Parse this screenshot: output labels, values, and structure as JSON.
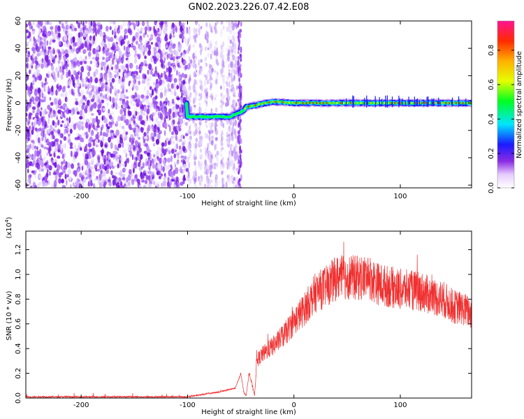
{
  "title": "GN02.2023.226.07.42.E08",
  "chart_data": [
    {
      "type": "heatmap",
      "xlabel": "Height of straight line (km)",
      "ylabel": "Frequency (Hz)",
      "xlim": [
        -252,
        167
      ],
      "ylim": [
        -62,
        60
      ],
      "xticks": [
        -200,
        -100,
        0,
        100
      ],
      "yticks": [
        60,
        40,
        20,
        0,
        -20,
        -40,
        -60
      ],
      "colorbar": {
        "label": "Normalized spectral amplitude",
        "range": [
          0.0,
          0.97
        ],
        "ticks": [
          "0.0",
          "0.2",
          "0.4",
          "0.6",
          "0.8"
        ]
      },
      "ridge": [
        {
          "x": -100,
          "freq": -10
        },
        {
          "x": -60,
          "freq": -10
        },
        {
          "x": -48,
          "freq": -6
        },
        {
          "x": -45,
          "freq": -3
        },
        {
          "x": -20,
          "freq": 1
        },
        {
          "x": 0,
          "freq": 0
        },
        {
          "x": 50,
          "freq": 0
        },
        {
          "x": 100,
          "freq": 0
        },
        {
          "x": 167,
          "freq": 0
        }
      ]
    },
    {
      "type": "line",
      "xlabel": "Height of straight line (km)",
      "ylabel": "SNR (10 * v/v)",
      "y_multiplier": "(x10^4)",
      "xlim": [
        -252,
        167
      ],
      "ylim": [
        0,
        1.35
      ],
      "xticks": [
        -200,
        -100,
        0,
        100
      ],
      "yticks": [
        "1.2",
        "1.0",
        "0.8",
        "0.6",
        "0.4",
        "0.2",
        "0.0"
      ],
      "series": [
        {
          "color": "#f03030",
          "x": [
            -252,
            -200,
            -150,
            -120,
            -100,
            -85,
            -70,
            -55,
            -50,
            -47,
            -45,
            -42,
            -37,
            -35,
            -30,
            -20,
            -10,
            0,
            10,
            20,
            30,
            40,
            50,
            60,
            70,
            80,
            90,
            100,
            110,
            120,
            130,
            140,
            150,
            160,
            167
          ],
          "y": [
            0.01,
            0.01,
            0.01,
            0.01,
            0.01,
            0.03,
            0.05,
            0.08,
            0.2,
            0.04,
            0.02,
            0.2,
            0.02,
            0.3,
            0.35,
            0.42,
            0.5,
            0.62,
            0.72,
            0.85,
            0.9,
            0.97,
            0.98,
            0.97,
            0.98,
            0.92,
            0.9,
            0.88,
            0.87,
            0.86,
            0.82,
            0.8,
            0.74,
            0.72,
            0.68
          ]
        }
      ]
    }
  ]
}
